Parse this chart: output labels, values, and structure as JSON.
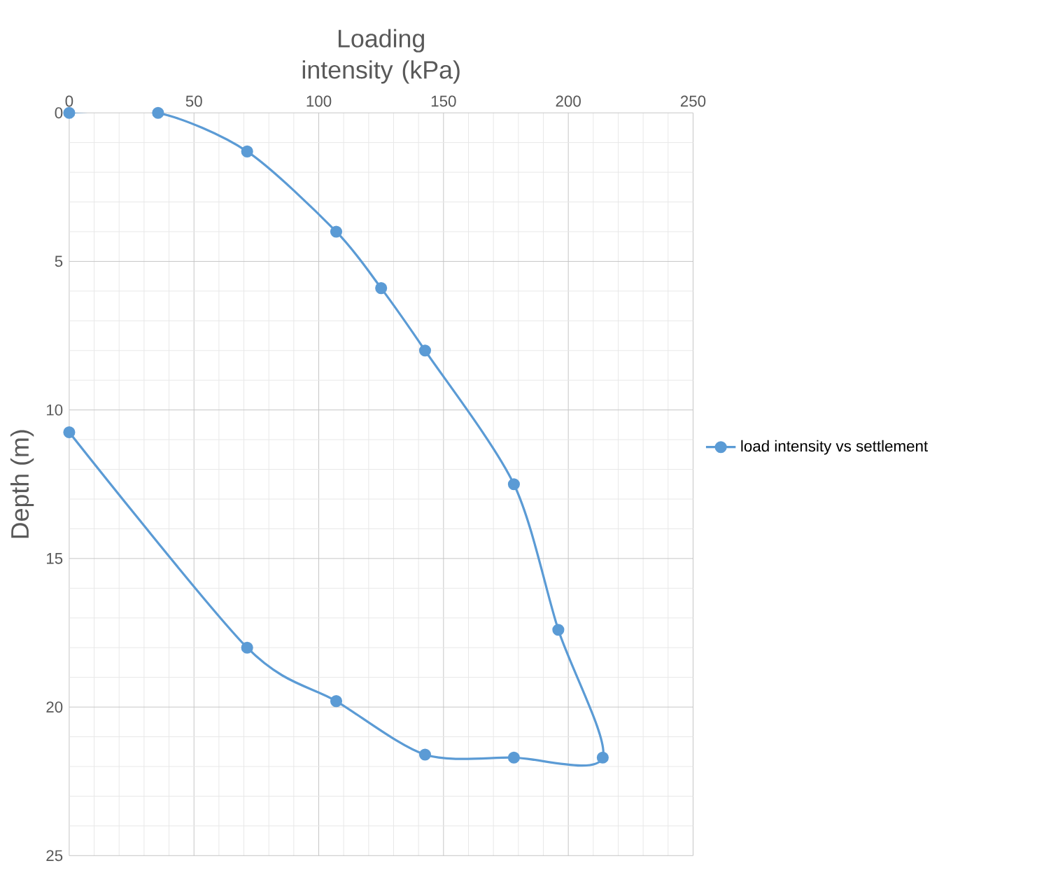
{
  "chart_data": {
    "type": "line",
    "xlabel": "Loading intensity (kPa)",
    "ylabel": "Depth (m)",
    "x": [
      0,
      35.6,
      71.3,
      107,
      125,
      142.6,
      178.2,
      196,
      213.8,
      178.2,
      142.6,
      107,
      71.3,
      0
    ],
    "series": [
      {
        "name": "load intensity vs settlement",
        "color": "#5b9bd5",
        "values": [
          0,
          0,
          1.3,
          4.0,
          5.9,
          8.0,
          12.5,
          17.4,
          21.7,
          21.7,
          21.6,
          19.8,
          18.0,
          10.75
        ]
      }
    ],
    "xlim": [
      0,
      250
    ],
    "xticks": [
      0,
      50,
      100,
      150,
      200,
      250
    ],
    "ylim": [
      25,
      0
    ],
    "yticks": [
      0,
      5,
      10,
      15,
      20,
      25
    ],
    "grid": true,
    "legend": "right",
    "marker": "circle",
    "line_style": "solid"
  }
}
